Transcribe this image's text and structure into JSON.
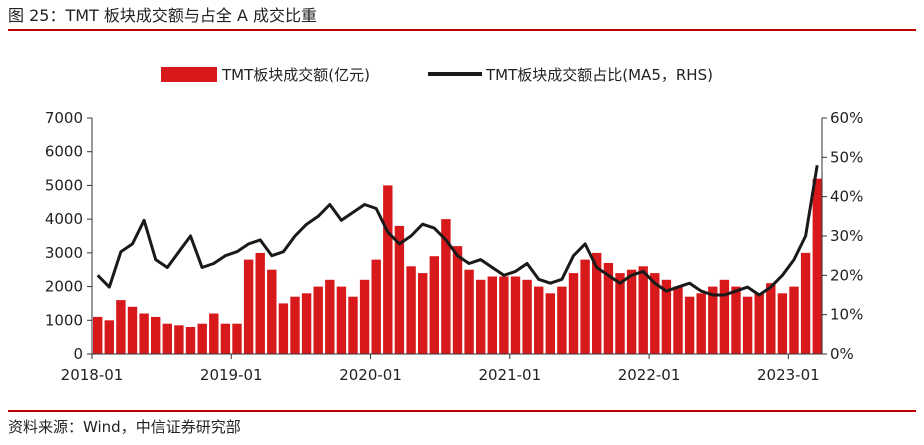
{
  "figure": {
    "title": "图 25：TMT 板块成交额与占全 A 成交比重",
    "source": "资料来源：Wind，中信证券研究部"
  },
  "colors": {
    "bar": "#d7191c",
    "line": "#1a1a1a",
    "rule": "#c00000",
    "axis": "#333333"
  },
  "chart_data": {
    "type": "bar",
    "title": "",
    "x_range": [
      "2018-01",
      "2023-03"
    ],
    "x_ticks": [
      "2018-01",
      "2019-01",
      "2020-01",
      "2021-01",
      "2022-01",
      "2023-01"
    ],
    "y_left": {
      "label": "",
      "ylim": [
        0,
        7000
      ],
      "ticks": [
        0,
        1000,
        2000,
        3000,
        4000,
        5000,
        6000,
        7000
      ]
    },
    "y_right": {
      "label": "",
      "ylim": [
        0,
        60
      ],
      "ticks": [
        "0%",
        "10%",
        "20%",
        "30%",
        "40%",
        "50%",
        "60%"
      ]
    },
    "legend_position": "top",
    "series": [
      {
        "name": "TMT板块成交额(亿元)",
        "type": "bar",
        "axis": "left",
        "x": [
          "2018-01",
          "2018-02",
          "2018-03",
          "2018-04",
          "2018-05",
          "2018-06",
          "2018-07",
          "2018-08",
          "2018-09",
          "2018-10",
          "2018-11",
          "2018-12",
          "2019-01",
          "2019-02",
          "2019-03",
          "2019-04",
          "2019-05",
          "2019-06",
          "2019-07",
          "2019-08",
          "2019-09",
          "2019-10",
          "2019-11",
          "2019-12",
          "2020-01",
          "2020-02",
          "2020-03",
          "2020-04",
          "2020-05",
          "2020-06",
          "2020-07",
          "2020-08",
          "2020-09",
          "2020-10",
          "2020-11",
          "2020-12",
          "2021-01",
          "2021-02",
          "2021-03",
          "2021-04",
          "2021-05",
          "2021-06",
          "2021-07",
          "2021-08",
          "2021-09",
          "2021-10",
          "2021-11",
          "2021-12",
          "2022-01",
          "2022-02",
          "2022-03",
          "2022-04",
          "2022-05",
          "2022-06",
          "2022-07",
          "2022-08",
          "2022-09",
          "2022-10",
          "2022-11",
          "2022-12",
          "2023-01",
          "2023-02",
          "2023-03"
        ],
        "values": [
          1100,
          1000,
          1600,
          1400,
          1200,
          1100,
          900,
          850,
          800,
          900,
          1200,
          900,
          900,
          2800,
          3000,
          2500,
          1500,
          1700,
          1800,
          2000,
          2200,
          2000,
          1700,
          2200,
          2800,
          5000,
          3800,
          2600,
          2400,
          2900,
          4000,
          3200,
          2500,
          2200,
          2300,
          2300,
          2300,
          2200,
          2000,
          1800,
          2000,
          2400,
          2800,
          3000,
          2700,
          2400,
          2500,
          2600,
          2400,
          2200,
          2000,
          1700,
          1800,
          2000,
          2200,
          2000,
          1700,
          1800,
          2100,
          1800,
          2000,
          3000,
          5200
        ]
      },
      {
        "name": "TMT板块成交额占比(MA5，RHS)",
        "type": "line",
        "axis": "right",
        "x": [
          "2018-01",
          "2018-02",
          "2018-03",
          "2018-04",
          "2018-05",
          "2018-06",
          "2018-07",
          "2018-08",
          "2018-09",
          "2018-10",
          "2018-11",
          "2018-12",
          "2019-01",
          "2019-02",
          "2019-03",
          "2019-04",
          "2019-05",
          "2019-06",
          "2019-07",
          "2019-08",
          "2019-09",
          "2019-10",
          "2019-11",
          "2019-12",
          "2020-01",
          "2020-02",
          "2020-03",
          "2020-04",
          "2020-05",
          "2020-06",
          "2020-07",
          "2020-08",
          "2020-09",
          "2020-10",
          "2020-11",
          "2020-12",
          "2021-01",
          "2021-02",
          "2021-03",
          "2021-04",
          "2021-05",
          "2021-06",
          "2021-07",
          "2021-08",
          "2021-09",
          "2021-10",
          "2021-11",
          "2021-12",
          "2022-01",
          "2022-02",
          "2022-03",
          "2022-04",
          "2022-05",
          "2022-06",
          "2022-07",
          "2022-08",
          "2022-09",
          "2022-10",
          "2022-11",
          "2022-12",
          "2023-01",
          "2023-02",
          "2023-03"
        ],
        "values": [
          20,
          17,
          26,
          28,
          34,
          24,
          22,
          26,
          30,
          22,
          23,
          25,
          26,
          28,
          29,
          25,
          26,
          30,
          33,
          35,
          38,
          34,
          36,
          38,
          37,
          31,
          28,
          30,
          33,
          32,
          29,
          25,
          23,
          24,
          22,
          20,
          21,
          23,
          19,
          18,
          19,
          25,
          28,
          22,
          20,
          18,
          20,
          21,
          18,
          16,
          17,
          18,
          16,
          15,
          15,
          16,
          17,
          15,
          17,
          20,
          24,
          30,
          48
        ]
      }
    ]
  }
}
